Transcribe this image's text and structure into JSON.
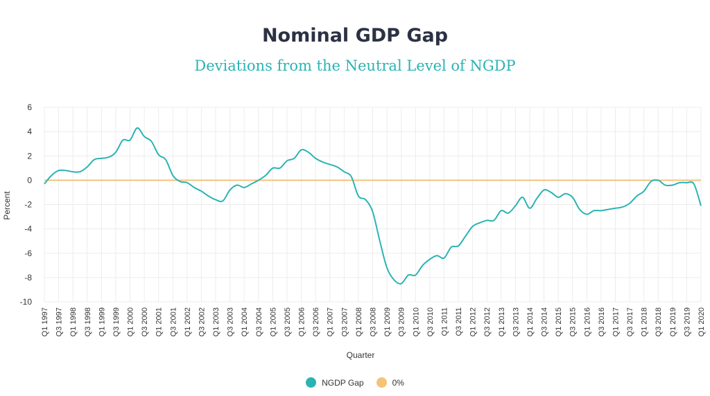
{
  "colors": {
    "series": "#2ab3b3",
    "zero": "#f5c27a",
    "grid": "#ececec",
    "title": "#2b3243"
  },
  "chart_data": {
    "type": "line",
    "title": "Nominal GDP Gap",
    "subtitle": "Deviations from the Neutral Level of NGDP",
    "xlabel": "Quarter",
    "ylabel": "Percent",
    "ylim": [
      -10,
      6
    ],
    "yticks": [
      6,
      4,
      2,
      0,
      -2,
      -4,
      -6,
      -8,
      -10
    ],
    "ytick_labels": [
      "6",
      "4",
      "2",
      "0",
      "-2",
      "-4",
      "-6",
      "-8",
      "-10"
    ],
    "grid": true,
    "legend_position": "bottom",
    "xtick_labels": [
      "Q1 1997",
      "Q3 1997",
      "Q1 1998",
      "Q3 1998",
      "Q1 1999",
      "Q3 1999",
      "Q1 2000",
      "Q3 2000",
      "Q1 2001",
      "Q3 2001",
      "Q1 2002",
      "Q3 2002",
      "Q1 2003",
      "Q3 2003",
      "Q1 2004",
      "Q3 2004",
      "Q1 2005",
      "Q3 2005",
      "Q1 2006",
      "Q3 2006",
      "Q1 2007",
      "Q3 2007",
      "Q1 2008",
      "Q3 2008",
      "Q1 2009",
      "Q3 2009",
      "Q1 2010",
      "Q3 2010",
      "Q1 2011",
      "Q3 2011",
      "Q1 2012",
      "Q3 2012",
      "Q1 2013",
      "Q3 2013",
      "Q1 2014",
      "Q3 2014",
      "Q1 2015",
      "Q3 2015",
      "Q1 2016",
      "Q3 2016",
      "Q1 2017",
      "Q3 2017",
      "Q1 2018",
      "Q3 2018",
      "Q1 2019",
      "Q3 2019",
      "Q1 2020"
    ],
    "series": [
      {
        "name": "NGDP Gap",
        "color": "#2ab3b3",
        "values": [
          -0.3,
          0.4,
          0.8,
          0.8,
          0.7,
          0.7,
          1.1,
          1.7,
          1.8,
          1.9,
          2.3,
          3.3,
          3.3,
          4.3,
          3.6,
          3.2,
          2.1,
          1.7,
          0.4,
          -0.1,
          -0.2,
          -0.6,
          -0.9,
          -1.3,
          -1.6,
          -1.7,
          -0.8,
          -0.4,
          -0.6,
          -0.3,
          0.0,
          0.4,
          1.0,
          1.0,
          1.6,
          1.8,
          2.5,
          2.3,
          1.8,
          1.5,
          1.3,
          1.1,
          0.7,
          0.3,
          -1.3,
          -1.6,
          -2.6,
          -5.0,
          -7.2,
          -8.2,
          -8.5,
          -7.8,
          -7.8,
          -7.0,
          -6.5,
          -6.2,
          -6.4,
          -5.5,
          -5.4,
          -4.6,
          -3.8,
          -3.5,
          -3.3,
          -3.3,
          -2.5,
          -2.7,
          -2.1,
          -1.4,
          -2.3,
          -1.5,
          -0.8,
          -1.0,
          -1.4,
          -1.1,
          -1.4,
          -2.4,
          -2.8,
          -2.5,
          -2.5,
          -2.4,
          -2.3,
          -2.2,
          -1.9,
          -1.3,
          -0.9,
          -0.1,
          0.0,
          -0.4,
          -0.4,
          -0.2,
          -0.2,
          -0.3,
          -2.1
        ]
      },
      {
        "name": "0%",
        "color": "#f5c27a",
        "values": [
          0,
          0
        ]
      }
    ]
  }
}
